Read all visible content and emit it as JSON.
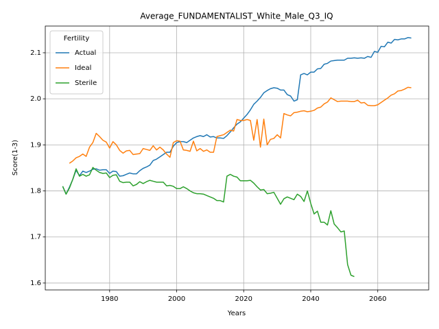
{
  "chart_data": {
    "type": "line",
    "title": "Average_FUNDAMENTALIST_White_Male_Q3_IQ",
    "xlabel": "Years",
    "ylabel": "Score(1-3)",
    "x": [
      1966,
      1967,
      1968,
      1969,
      1970,
      1971,
      1972,
      1973,
      1974,
      1975,
      1976,
      1977,
      1978,
      1979,
      1980,
      1981,
      1982,
      1983,
      1984,
      1985,
      1986,
      1987,
      1988,
      1989,
      1990,
      1991,
      1992,
      1993,
      1994,
      1995,
      1996,
      1997,
      1998,
      1999,
      2000,
      2001,
      2002,
      2003,
      2004,
      2005,
      2006,
      2007,
      2008,
      2009,
      2010,
      2011,
      2012,
      2013,
      2014,
      2015,
      2016,
      2017,
      2018,
      2019,
      2020,
      2021,
      2022,
      2023,
      2024,
      2025,
      2026,
      2027,
      2028,
      2029,
      2030,
      2031,
      2032,
      2033,
      2034,
      2035,
      2036,
      2037,
      2038,
      2039,
      2040,
      2041,
      2042,
      2043,
      2044,
      2045,
      2046,
      2047,
      2048,
      2049,
      2050,
      2051,
      2052,
      2053,
      2054,
      2055,
      2056,
      2057,
      2058,
      2059,
      2060,
      2061,
      2062,
      2063,
      2064,
      2065,
      2066,
      2067,
      2068,
      2069,
      2070
    ],
    "series": [
      {
        "name": "Actual",
        "color": "#1f77b4",
        "values": [
          1.81,
          1.793,
          1.808,
          1.825,
          1.845,
          1.833,
          1.843,
          1.84,
          1.843,
          1.847,
          1.848,
          1.845,
          1.846,
          1.846,
          1.838,
          1.843,
          1.842,
          1.832,
          1.833,
          1.836,
          1.839,
          1.837,
          1.837,
          1.844,
          1.849,
          1.852,
          1.856,
          1.866,
          1.869,
          1.874,
          1.879,
          1.884,
          1.884,
          1.897,
          1.905,
          1.907,
          1.907,
          1.905,
          1.91,
          1.915,
          1.918,
          1.92,
          1.918,
          1.922,
          1.917,
          1.918,
          1.915,
          1.915,
          1.914,
          1.92,
          1.928,
          1.937,
          1.945,
          1.95,
          1.958,
          1.966,
          1.976,
          1.988,
          1.995,
          2.003,
          2.013,
          2.018,
          2.022,
          2.024,
          2.023,
          2.019,
          2.019,
          2.009,
          2.006,
          1.995,
          1.998,
          2.052,
          2.055,
          2.052,
          2.058,
          2.058,
          2.065,
          2.066,
          2.075,
          2.077,
          2.082,
          2.083,
          2.084,
          2.084,
          2.084,
          2.088,
          2.088,
          2.089,
          2.088,
          2.089,
          2.088,
          2.092,
          2.09,
          2.103,
          2.101,
          2.114,
          2.113,
          2.123,
          2.121,
          2.129,
          2.128,
          2.13,
          2.13,
          2.133,
          2.132
        ]
      },
      {
        "name": "Ideal",
        "color": "#ff7f0e",
        "values": [
          null,
          null,
          1.86,
          1.865,
          1.872,
          1.875,
          1.88,
          1.875,
          1.895,
          1.905,
          1.925,
          1.918,
          1.91,
          1.906,
          1.893,
          1.907,
          1.9,
          1.888,
          1.882,
          1.887,
          1.888,
          1.879,
          1.88,
          1.881,
          1.892,
          1.89,
          1.888,
          1.898,
          1.889,
          1.895,
          1.889,
          1.88,
          1.873,
          1.905,
          1.909,
          1.908,
          1.889,
          1.888,
          1.886,
          1.908,
          1.887,
          1.892,
          1.886,
          1.889,
          1.884,
          1.884,
          1.918,
          1.92,
          1.922,
          1.927,
          1.932,
          1.93,
          1.955,
          1.953,
          1.953,
          1.955,
          1.953,
          1.91,
          1.955,
          1.895,
          1.956,
          1.9,
          1.912,
          1.914,
          1.922,
          1.915,
          1.968,
          1.965,
          1.963,
          1.97,
          1.971,
          1.973,
          1.974,
          1.972,
          1.973,
          1.975,
          1.98,
          1.982,
          1.989,
          1.993,
          2.002,
          1.998,
          1.994,
          1.995,
          1.995,
          1.995,
          1.994,
          1.994,
          1.997,
          1.991,
          1.992,
          1.986,
          1.985,
          1.985,
          1.987,
          1.992,
          1.997,
          2.002,
          2.008,
          2.011,
          2.017,
          2.018,
          2.021,
          2.025,
          2.024
        ]
      },
      {
        "name": "Sterile",
        "color": "#2ca02c",
        "values": [
          1.81,
          1.793,
          1.806,
          1.825,
          1.848,
          1.832,
          1.836,
          1.832,
          1.835,
          1.851,
          1.845,
          1.84,
          1.838,
          1.839,
          1.829,
          1.834,
          1.835,
          1.821,
          1.818,
          1.819,
          1.819,
          1.811,
          1.814,
          1.82,
          1.816,
          1.82,
          1.823,
          1.821,
          1.819,
          1.819,
          1.819,
          1.811,
          1.812,
          1.81,
          1.805,
          1.805,
          1.809,
          1.805,
          1.8,
          1.796,
          1.794,
          1.794,
          1.793,
          1.79,
          1.787,
          1.784,
          1.779,
          1.779,
          1.776,
          1.832,
          1.836,
          1.832,
          1.83,
          1.822,
          1.822,
          1.822,
          1.823,
          1.817,
          1.809,
          1.802,
          1.803,
          1.794,
          1.795,
          1.797,
          1.784,
          1.771,
          1.783,
          1.787,
          1.784,
          1.781,
          1.793,
          1.788,
          1.777,
          1.8,
          1.773,
          1.75,
          1.756,
          1.732,
          1.732,
          1.726,
          1.757,
          1.728,
          1.72,
          1.711,
          1.713,
          1.64,
          1.617,
          1.614,
          null,
          null,
          null,
          null,
          null,
          null,
          null,
          null,
          null,
          null,
          null,
          null,
          null,
          null,
          null,
          null,
          null
        ]
      }
    ],
    "xlim": [
      1960.8,
      2075.2
    ],
    "ylim": [
      1.585,
      2.158
    ],
    "xticks": [
      1980,
      2000,
      2020,
      2040,
      2060
    ],
    "yticks": [
      1.6,
      1.7,
      1.8,
      1.9,
      {
        "value": 2,
        "label": "2.0"
      },
      2.1
    ],
    "grid": true,
    "legend_title": "Fertility",
    "legend_loc": "upper left"
  }
}
